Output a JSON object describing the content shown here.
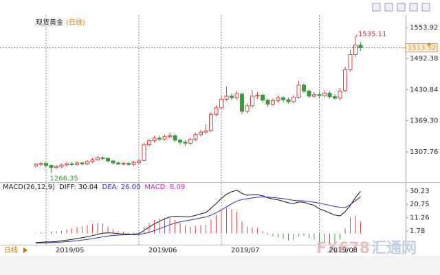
{
  "chart_data": [
    {
      "type": "candlestick",
      "title": "现货黄金",
      "subtitle": "(日线)",
      "categories": [
        null,
        null,
        "2019/05",
        null,
        null,
        null,
        null,
        null,
        null,
        null,
        null,
        null,
        null,
        null,
        null,
        null,
        null,
        null,
        null,
        null,
        "2019/06",
        null,
        null,
        null,
        null,
        null,
        null,
        null,
        null,
        null,
        null,
        null,
        null,
        null,
        null,
        null,
        "2019/07",
        null,
        null,
        null,
        null,
        null,
        null,
        null,
        null,
        null,
        null,
        null,
        null,
        null,
        null,
        null,
        null,
        null,
        null,
        "2019/08",
        null,
        null,
        null,
        null,
        null,
        null,
        null,
        null
      ],
      "open": [
        1280,
        1283,
        1285,
        1281,
        1277,
        1279,
        1282,
        1284,
        1283,
        1286,
        1284,
        1289,
        1292,
        1296,
        1295,
        1290,
        1286,
        1284,
        1285,
        1283,
        1287,
        1291,
        1322,
        1330,
        1335,
        1333,
        1338,
        1340,
        1331,
        1327,
        1325,
        1333,
        1342,
        1347,
        1350,
        1382,
        1395,
        1412,
        1418,
        1415,
        1422,
        1388,
        1399,
        1418,
        1420,
        1410,
        1402,
        1409,
        1415,
        1411,
        1407,
        1416,
        1440,
        1428,
        1418,
        1421,
        1419,
        1424,
        1417,
        1414,
        1429,
        1470,
        1500,
        1519
      ],
      "high": [
        1286,
        1288,
        1287,
        1283,
        1282,
        1285,
        1287,
        1288,
        1289,
        1288,
        1292,
        1296,
        1300,
        1299,
        1297,
        1292,
        1289,
        1288,
        1288,
        1290,
        1294,
        1326,
        1333,
        1339,
        1340,
        1342,
        1346,
        1343,
        1334,
        1331,
        1336,
        1346,
        1351,
        1362,
        1386,
        1400,
        1420,
        1437,
        1424,
        1428,
        1425,
        1404,
        1430,
        1426,
        1423,
        1413,
        1414,
        1419,
        1418,
        1415,
        1420,
        1448,
        1443,
        1431,
        1426,
        1427,
        1430,
        1428,
        1422,
        1434,
        1476,
        1510,
        1535.11,
        1525
      ],
      "low": [
        1277,
        1280,
        1278,
        1266.35,
        1274,
        1276,
        1279,
        1280,
        1280,
        1281,
        1282,
        1286,
        1290,
        1291,
        1287,
        1283,
        1281,
        1281,
        1280,
        1280,
        1284,
        1289,
        1318,
        1326,
        1329,
        1330,
        1334,
        1327,
        1322,
        1320,
        1322,
        1330,
        1338,
        1343,
        1347,
        1378,
        1391,
        1408,
        1410,
        1411,
        1382,
        1384,
        1395,
        1412,
        1405,
        1396,
        1399,
        1405,
        1406,
        1403,
        1404,
        1413,
        1424,
        1414,
        1415,
        1415,
        1416,
        1413,
        1410,
        1411,
        1426,
        1466,
        1495,
        1508
      ],
      "close": [
        1283,
        1285,
        1281,
        1277,
        1279,
        1282,
        1284,
        1283,
        1286,
        1284,
        1289,
        1292,
        1296,
        1295,
        1290,
        1286,
        1284,
        1285,
        1283,
        1287,
        1290,
        1322,
        1330,
        1335,
        1333,
        1338,
        1340,
        1331,
        1327,
        1325,
        1333,
        1342,
        1347,
        1349,
        1382,
        1395,
        1412,
        1418,
        1415,
        1423,
        1388,
        1399,
        1418,
        1420,
        1410,
        1402,
        1409,
        1415,
        1411,
        1407,
        1416,
        1440,
        1428,
        1418,
        1421,
        1419,
        1424,
        1417,
        1414,
        1428,
        1470,
        1500,
        1519,
        1513.52
      ],
      "up_color": "#e0403f",
      "down_color": "#3c9a3c",
      "ylim": [
        1252,
        1570
      ],
      "yticks": [
        1553.92,
        1492.38,
        1430.84,
        {
          "value": 1369.3,
          "label": "1369.30"
        },
        1307.76
      ],
      "high_label": "1535.11",
      "low_label": "1266.35",
      "last_price": 1513.52
    },
    {
      "type": "macd",
      "series": [
        {
          "name": "DIFF: 30.04",
          "color": "#111111",
          "kind": "line",
          "values": [
            -6.5,
            -6.2,
            -6.0,
            -5.9,
            -5.6,
            -5.2,
            -4.7,
            -4.2,
            -3.6,
            -3.0,
            -2.3,
            -1.5,
            -0.6,
            0.2,
            0.5,
            0.3,
            -0.1,
            -0.3,
            -0.5,
            -0.4,
            -0.2,
            2.2,
            4.6,
            6.9,
            8.7,
            10.4,
            11.8,
            12.2,
            12.1,
            11.7,
            12.0,
            12.9,
            14.0,
            14.9,
            18.0,
            21.3,
            25.0,
            28.0,
            29.6,
            30.8,
            28.5,
            27.2,
            27.5,
            27.6,
            26.8,
            25.4,
            24.5,
            23.9,
            22.9,
            21.8,
            21.3,
            22.4,
            22.2,
            21.0,
            20.0,
            17.5,
            16.2,
            14.6,
            13.1,
            12.5,
            15.5,
            20.0,
            25.5,
            30.04
          ]
        },
        {
          "name": "DEA: 26.00",
          "color": "#2a2ad0",
          "kind": "line",
          "values": [
            -6.9,
            -6.76,
            -6.6,
            -6.46,
            -6.29,
            -6.07,
            -5.8,
            -5.48,
            -5.1,
            -4.68,
            -4.2,
            -3.66,
            -3.05,
            -2.4,
            -1.82,
            -1.4,
            -1.14,
            -0.97,
            -0.88,
            -0.78,
            -0.66,
            -0.09,
            0.85,
            2.06,
            3.39,
            4.79,
            6.19,
            7.39,
            8.33,
            9.0,
            9.6,
            10.26,
            11.01,
            11.79,
            13.03,
            14.68,
            16.74,
            18.99,
            21.11,
            23.05,
            24.14,
            24.75,
            25.3,
            25.76,
            25.97,
            25.86,
            25.59,
            25.25,
            24.78,
            24.18,
            23.6,
            23.36,
            23.13,
            22.7,
            22.16,
            21.5,
            20.8,
            20.0,
            19.2,
            18.6,
            18.5,
            20.5,
            23.3,
            26.0
          ]
        },
        {
          "name": "MACD: 8.09",
          "color": "#d020d0",
          "kind": "histogram",
          "up_color": "#e0403f",
          "down_color": "#3c9a3c",
          "values": [
            0.5,
            0.8,
            1.0,
            1.3,
            1.6,
            2.0,
            2.8,
            3.6,
            4.5,
            5.1,
            5.9,
            6.7,
            7.4,
            6.9,
            4.8,
            3.0,
            1.9,
            1.3,
            0.8,
            0.8,
            0.9,
            4.6,
            7.5,
            9.7,
            10.6,
            11.2,
            11.2,
            9.6,
            7.5,
            5.4,
            4.8,
            5.3,
            6.0,
            6.2,
            9.9,
            13.2,
            16.5,
            18.0,
            17.0,
            15.5,
            8.7,
            4.9,
            4.4,
            3.7,
            1.7,
            -0.9,
            -2.2,
            -2.7,
            -3.8,
            -4.8,
            -4.6,
            -1.9,
            -1.8,
            -3.4,
            -4.3,
            -6.0,
            -6.2,
            -6.8,
            -6.5,
            -4.4,
            3.4,
            11.6,
            12.6,
            8.09
          ]
        }
      ],
      "title": "MACD(26,12,9)",
      "ylim": [
        -8,
        35
      ],
      "yticks": [
        30.23,
        20.75,
        11.26,
        1.78
      ]
    }
  ],
  "footer": {
    "period": "日线",
    "watermark_brand": "FX678",
    "watermark_name": "汇通网"
  }
}
